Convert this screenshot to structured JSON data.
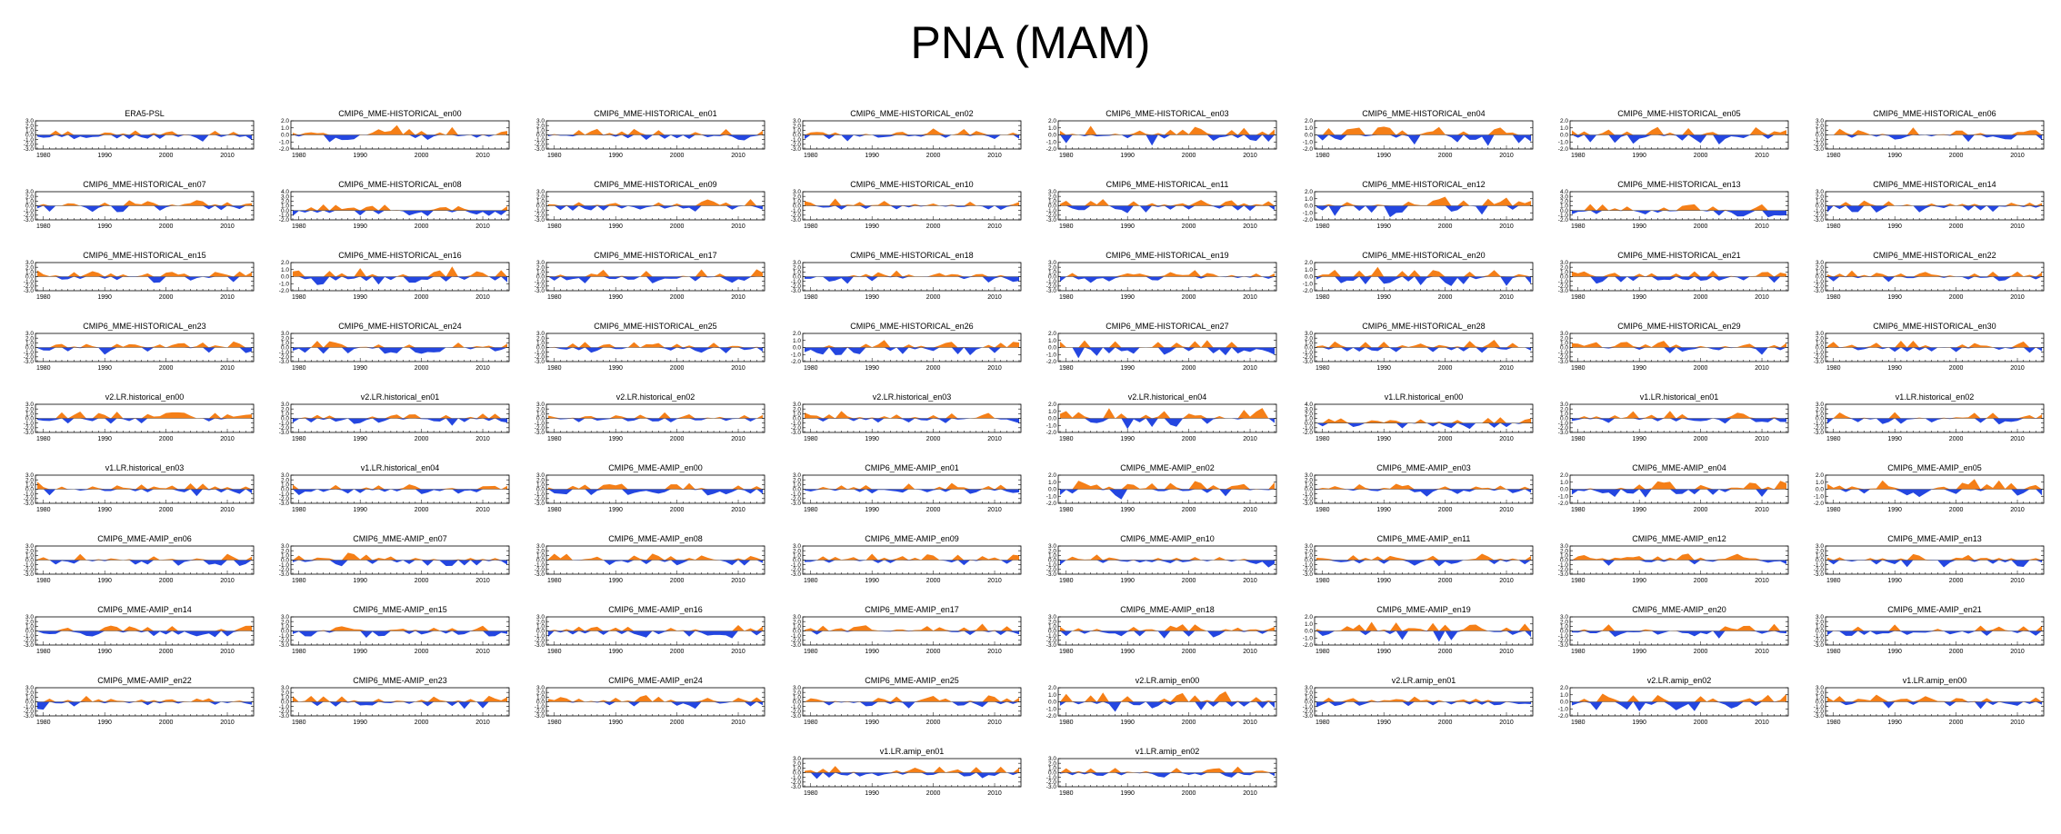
{
  "title": "PNA (MAM)",
  "colors": {
    "positive": "#f57f17",
    "negative": "#2446e0",
    "axis": "#000000"
  },
  "chart_data": {
    "type": "area",
    "layout_description": "small-multiples grid, 8 columns, 10 rows (last row centered)",
    "x_range": [
      1979,
      2014
    ],
    "x_ticks": [
      1980,
      1990,
      2000,
      2010
    ],
    "y_tick_sets": {
      "A": [
        "3.0",
        "2.0",
        "1.0",
        "0.0",
        "-1.0",
        "-2.0",
        "-3.0"
      ],
      "B": [
        "2.0",
        "1.0",
        "0.0",
        "-1.0",
        "-2.0"
      ],
      "C": [
        "4.0",
        "3.0",
        "2.0",
        "1.0",
        "0.0",
        "-1.0",
        "-2.0"
      ]
    },
    "panels": [
      {
        "title": "ERA5-PSL",
        "yt": "A"
      },
      {
        "title": "CMIP6_MME-HISTORICAL_en00",
        "yt": "B"
      },
      {
        "title": "CMIP6_MME-HISTORICAL_en01",
        "yt": "A"
      },
      {
        "title": "CMIP6_MME-HISTORICAL_en02",
        "yt": "A"
      },
      {
        "title": "CMIP6_MME-HISTORICAL_en03",
        "yt": "B"
      },
      {
        "title": "CMIP6_MME-HISTORICAL_en04",
        "yt": "B"
      },
      {
        "title": "CMIP6_MME-HISTORICAL_en05",
        "yt": "B"
      },
      {
        "title": "CMIP6_MME-HISTORICAL_en06",
        "yt": "A"
      },
      {
        "title": "CMIP6_MME-HISTORICAL_en07",
        "yt": "A"
      },
      {
        "title": "CMIP6_MME-HISTORICAL_en08",
        "yt": "C"
      },
      {
        "title": "CMIP6_MME-HISTORICAL_en09",
        "yt": "A"
      },
      {
        "title": "CMIP6_MME-HISTORICAL_en10",
        "yt": "A"
      },
      {
        "title": "CMIP6_MME-HISTORICAL_en11",
        "yt": "A"
      },
      {
        "title": "CMIP6_MME-HISTORICAL_en12",
        "yt": "B"
      },
      {
        "title": "CMIP6_MME-HISTORICAL_en13",
        "yt": "C"
      },
      {
        "title": "CMIP6_MME-HISTORICAL_en14",
        "yt": "A"
      },
      {
        "title": "CMIP6_MME-HISTORICAL_en15",
        "yt": "A"
      },
      {
        "title": "CMIP6_MME-HISTORICAL_en16",
        "yt": "B"
      },
      {
        "title": "CMIP6_MME-HISTORICAL_en17",
        "yt": "A"
      },
      {
        "title": "CMIP6_MME-HISTORICAL_en18",
        "yt": "A"
      },
      {
        "title": "CMIP6_MME-HISTORICAL_en19",
        "yt": "A"
      },
      {
        "title": "CMIP6_MME-HISTORICAL_en20",
        "yt": "B"
      },
      {
        "title": "CMIP6_MME-HISTORICAL_en21",
        "yt": "A"
      },
      {
        "title": "CMIP6_MME-HISTORICAL_en22",
        "yt": "A"
      },
      {
        "title": "CMIP6_MME-HISTORICAL_en23",
        "yt": "A"
      },
      {
        "title": "CMIP6_MME-HISTORICAL_en24",
        "yt": "A"
      },
      {
        "title": "CMIP6_MME-HISTORICAL_en25",
        "yt": "A"
      },
      {
        "title": "CMIP6_MME-HISTORICAL_en26",
        "yt": "B"
      },
      {
        "title": "CMIP6_MME-HISTORICAL_en27",
        "yt": "B"
      },
      {
        "title": "CMIP6_MME-HISTORICAL_en28",
        "yt": "A"
      },
      {
        "title": "CMIP6_MME-HISTORICAL_en29",
        "yt": "A"
      },
      {
        "title": "CMIP6_MME-HISTORICAL_en30",
        "yt": "A"
      },
      {
        "title": "v2.LR.historical_en00",
        "yt": "A"
      },
      {
        "title": "v2.LR.historical_en01",
        "yt": "A"
      },
      {
        "title": "v2.LR.historical_en02",
        "yt": "A"
      },
      {
        "title": "v2.LR.historical_en03",
        "yt": "A"
      },
      {
        "title": "v2.LR.historical_en04",
        "yt": "B"
      },
      {
        "title": "v1.LR.historical_en00",
        "yt": "C"
      },
      {
        "title": "v1.LR.historical_en01",
        "yt": "A"
      },
      {
        "title": "v1.LR.historical_en02",
        "yt": "A"
      },
      {
        "title": "v1.LR.historical_en03",
        "yt": "A"
      },
      {
        "title": "v1.LR.historical_en04",
        "yt": "A"
      },
      {
        "title": "CMIP6_MME-AMIP_en00",
        "yt": "A"
      },
      {
        "title": "CMIP6_MME-AMIP_en01",
        "yt": "A"
      },
      {
        "title": "CMIP6_MME-AMIP_en02",
        "yt": "B"
      },
      {
        "title": "CMIP6_MME-AMIP_en03",
        "yt": "A"
      },
      {
        "title": "CMIP6_MME-AMIP_en04",
        "yt": "B"
      },
      {
        "title": "CMIP6_MME-AMIP_en05",
        "yt": "B"
      },
      {
        "title": "CMIP6_MME-AMIP_en06",
        "yt": "A"
      },
      {
        "title": "CMIP6_MME-AMIP_en07",
        "yt": "A"
      },
      {
        "title": "CMIP6_MME-AMIP_en08",
        "yt": "A"
      },
      {
        "title": "CMIP6_MME-AMIP_en09",
        "yt": "A"
      },
      {
        "title": "CMIP6_MME-AMIP_en10",
        "yt": "A"
      },
      {
        "title": "CMIP6_MME-AMIP_en11",
        "yt": "A"
      },
      {
        "title": "CMIP6_MME-AMIP_en12",
        "yt": "A"
      },
      {
        "title": "CMIP6_MME-AMIP_en13",
        "yt": "A"
      },
      {
        "title": "CMIP6_MME-AMIP_en14",
        "yt": "A"
      },
      {
        "title": "CMIP6_MME-AMIP_en15",
        "yt": "A"
      },
      {
        "title": "CMIP6_MME-AMIP_en16",
        "yt": "A"
      },
      {
        "title": "CMIP6_MME-AMIP_en17",
        "yt": "A"
      },
      {
        "title": "CMIP6_MME-AMIP_en18",
        "yt": "A"
      },
      {
        "title": "CMIP6_MME-AMIP_en19",
        "yt": "B"
      },
      {
        "title": "CMIP6_MME-AMIP_en20",
        "yt": "A"
      },
      {
        "title": "CMIP6_MME-AMIP_en21",
        "yt": "A"
      },
      {
        "title": "CMIP6_MME-AMIP_en22",
        "yt": "A"
      },
      {
        "title": "CMIP6_MME-AMIP_en23",
        "yt": "A"
      },
      {
        "title": "CMIP6_MME-AMIP_en24",
        "yt": "A"
      },
      {
        "title": "CMIP6_MME-AMIP_en25",
        "yt": "A"
      },
      {
        "title": "v2.LR.amip_en00",
        "yt": "B"
      },
      {
        "title": "v2.LR.amip_en01",
        "yt": "A"
      },
      {
        "title": "v2.LR.amip_en02",
        "yt": "B"
      },
      {
        "title": "v1.LR.amip_en00",
        "yt": "A"
      },
      {
        "title": "v1.LR.amip_en01",
        "yt": "A"
      },
      {
        "title": "v1.LR.amip_en02",
        "yt": "A"
      }
    ],
    "series_note": "each panel: annual MAM PNA index 1979-2014 (36 values); positive anomalies filled orange, negative filled blue. Values approximate (not legible at source resolution)."
  }
}
